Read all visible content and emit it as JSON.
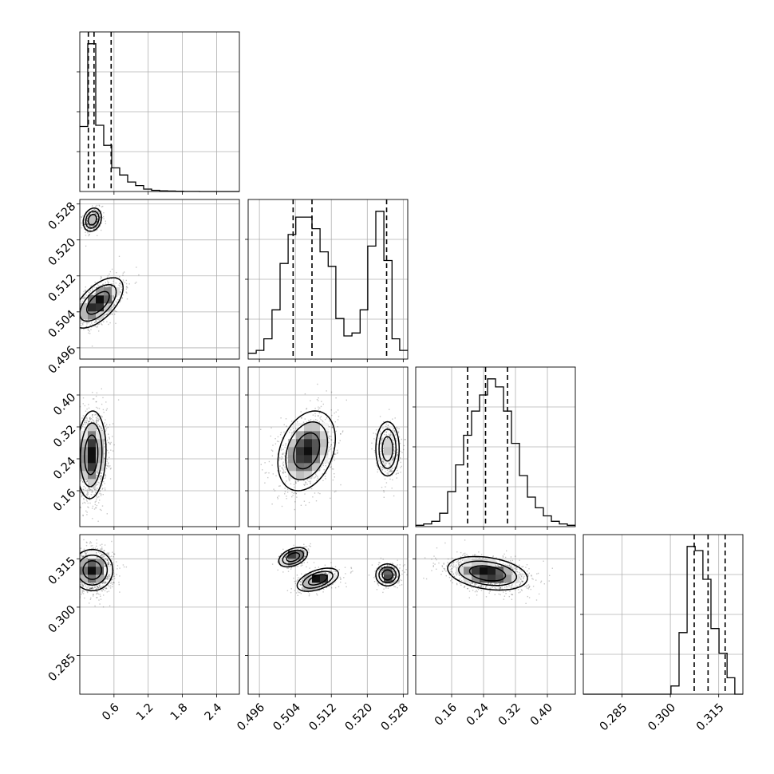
{
  "chart_data": {
    "type": "scatter",
    "kind": "corner-plot",
    "n_params": 4,
    "title": "",
    "grid": true,
    "params": [
      {
        "range": [
          0.0,
          2.8
        ],
        "ticks": [
          0.6,
          1.2,
          1.8,
          2.4
        ],
        "tick_labels": [
          "0.6",
          "1.2",
          "1.8",
          "2.4"
        ],
        "quantiles": [
          0.15,
          0.25,
          0.55
        ]
      },
      {
        "range": [
          0.4935,
          0.529
        ],
        "ticks": [
          0.496,
          0.504,
          0.512,
          0.52,
          0.528
        ],
        "tick_labels": [
          "0.496",
          "0.504",
          "0.512",
          "0.520",
          "0.528"
        ],
        "quantiles": [
          0.5035,
          0.5077,
          0.5243
        ]
      },
      {
        "range": [
          0.07,
          0.47
        ],
        "ticks": [
          0.16,
          0.24,
          0.32,
          0.4
        ],
        "tick_labels": [
          "0.16",
          "0.24",
          "0.32",
          "0.40"
        ],
        "quantiles": [
          0.2,
          0.245,
          0.3
        ]
      },
      {
        "range": [
          0.273,
          0.3225
        ],
        "ticks": [
          0.285,
          0.3,
          0.315
        ],
        "tick_labels": [
          "0.285",
          "0.300",
          "0.315"
        ],
        "quantiles": [
          0.3074,
          0.3117,
          0.317
        ]
      }
    ],
    "histograms": [
      {
        "param": 0,
        "bins": [
          0.0,
          0.14,
          0.28,
          0.42,
          0.56,
          0.7,
          0.84,
          0.98,
          1.12,
          1.26,
          1.4,
          1.54,
          1.68,
          1.82,
          1.96,
          2.1,
          2.24,
          2.38,
          2.52,
          2.66,
          2.8
        ],
        "counts": [
          55,
          125,
          56,
          39,
          20,
          14,
          8,
          5,
          2,
          1,
          0.6,
          0.4,
          0.2,
          0.1,
          0.05,
          0,
          0,
          0,
          0,
          0
        ]
      },
      {
        "param": 1,
        "bins": [
          0.4935,
          0.4953,
          0.497,
          0.4988,
          0.5006,
          0.5024,
          0.5041,
          0.5059,
          0.5077,
          0.5095,
          0.5113,
          0.513,
          0.5148,
          0.5166,
          0.5184,
          0.5201,
          0.5219,
          0.5237,
          0.5255,
          0.5272,
          0.529
        ],
        "counts": [
          2,
          3,
          7,
          17,
          33,
          43,
          49,
          49,
          45,
          37,
          32,
          14,
          8,
          9,
          17,
          39,
          51,
          34,
          7,
          3
        ]
      },
      {
        "param": 2,
        "bins": [
          0.07,
          0.09,
          0.11,
          0.13,
          0.15,
          0.17,
          0.19,
          0.21,
          0.23,
          0.25,
          0.27,
          0.29,
          0.31,
          0.33,
          0.35,
          0.37,
          0.39,
          0.41,
          0.43,
          0.45,
          0.47
        ],
        "counts": [
          0.5,
          1,
          2,
          5,
          13,
          23,
          34,
          43,
          49,
          55,
          52,
          43,
          31,
          19,
          11,
          7,
          4,
          2,
          1,
          0.5
        ]
      },
      {
        "param": 3,
        "bins": [
          0.273,
          0.2755,
          0.278,
          0.2804,
          0.2829,
          0.2854,
          0.2879,
          0.2903,
          0.2928,
          0.2953,
          0.2978,
          0.3002,
          0.3027,
          0.3052,
          0.3077,
          0.3101,
          0.3126,
          0.3151,
          0.3176,
          0.32,
          0.3225
        ],
        "counts": [
          0,
          0,
          0,
          0,
          0,
          0,
          0,
          0,
          0,
          0,
          0,
          2,
          15,
          36,
          35,
          28,
          16,
          10,
          4,
          0
        ]
      }
    ],
    "scatter_2d": [
      {
        "x": 0,
        "y": 1,
        "modes": [
          {
            "cx": 0.22,
            "cy": 0.5245,
            "sx": 0.08,
            "sy": 0.0013,
            "rho": 0.2,
            "w": 0.32
          },
          {
            "cx": 0.32,
            "cy": 0.506,
            "sx": 0.22,
            "sy": 0.0028,
            "rho": 0.6,
            "w": 0.68
          }
        ]
      },
      {
        "x": 0,
        "y": 2,
        "modes": [
          {
            "cx": 0.2,
            "cy": 0.25,
            "sx": 0.13,
            "sy": 0.055,
            "rho": 0.1,
            "w": 1.0
          }
        ]
      },
      {
        "x": 0,
        "y": 3,
        "modes": [
          {
            "cx": 0.22,
            "cy": 0.3115,
            "sx": 0.18,
            "sy": 0.0032,
            "rho": 0.0,
            "w": 1.0
          }
        ]
      },
      {
        "x": 1,
        "y": 2,
        "modes": [
          {
            "cx": 0.5065,
            "cy": 0.26,
            "sx": 0.0032,
            "sy": 0.05,
            "rho": 0.3,
            "w": 0.68
          },
          {
            "cx": 0.5245,
            "cy": 0.265,
            "sx": 0.0013,
            "sy": 0.034,
            "rho": 0.0,
            "w": 0.32
          }
        ]
      },
      {
        "x": 1,
        "y": 3,
        "modes": [
          {
            "cx": 0.5035,
            "cy": 0.3155,
            "sx": 0.0016,
            "sy": 0.0015,
            "rho": 0.4,
            "w": 0.34
          },
          {
            "cx": 0.509,
            "cy": 0.3085,
            "sx": 0.0023,
            "sy": 0.0018,
            "rho": 0.5,
            "w": 0.34
          },
          {
            "cx": 0.5245,
            "cy": 0.31,
            "sx": 0.0013,
            "sy": 0.0017,
            "rho": 0.0,
            "w": 0.32
          }
        ]
      },
      {
        "x": 2,
        "y": 3,
        "modes": [
          {
            "cx": 0.25,
            "cy": 0.3105,
            "sx": 0.05,
            "sy": 0.0026,
            "rho": -0.3,
            "w": 1.0
          }
        ]
      }
    ]
  }
}
